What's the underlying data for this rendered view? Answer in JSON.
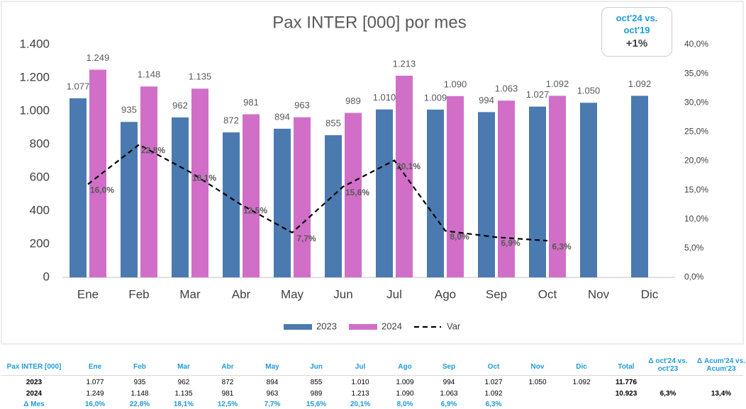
{
  "chart_data": {
    "type": "bar",
    "title": "Pax INTER [000] por mes",
    "categories": [
      "Ene",
      "Feb",
      "Mar",
      "Abr",
      "May",
      "Jun",
      "Jul",
      "Ago",
      "Sep",
      "Oct",
      "Nov",
      "Dic"
    ],
    "series": [
      {
        "name": "2023",
        "color": "#4a7ab0",
        "values": [
          1077,
          935,
          962,
          872,
          894,
          855,
          1010,
          1009,
          994,
          1027,
          1050,
          1092
        ],
        "value_labels": [
          "1.077",
          "935",
          "962",
          "872",
          "894",
          "855",
          "1.010",
          "1.009",
          "994",
          "1.027",
          "1.050",
          "1.092"
        ]
      },
      {
        "name": "2024",
        "color": "#d16fc8",
        "values": [
          1249,
          1148,
          1135,
          981,
          963,
          989,
          1213,
          1090,
          1063,
          1092,
          null,
          null
        ],
        "value_labels": [
          "1.249",
          "1.148",
          "1.135",
          "981",
          "963",
          "989",
          "1.213",
          "1.090",
          "1.063",
          "1.092",
          null,
          null
        ]
      },
      {
        "name": "Var",
        "color": "#000000",
        "axis": "y2",
        "values": [
          16.0,
          22.8,
          18.1,
          12.5,
          7.7,
          15.6,
          20.1,
          8.0,
          6.9,
          6.3,
          null,
          null
        ],
        "value_labels": [
          "16,0%",
          "22,8%",
          "18,1%",
          "12,5%",
          "7,7%",
          "15,6%",
          "20,1%",
          "8,0%",
          "6,9%",
          "6,3%",
          null,
          null
        ]
      }
    ],
    "ylim": [
      0,
      1400
    ],
    "yticks": [
      0,
      200,
      400,
      600,
      800,
      {
        "value": 1000,
        "label": "1.000"
      },
      {
        "value": 1200,
        "label": "1.200"
      },
      {
        "value": 1400,
        "label": "1.400"
      }
    ],
    "y2lim": [
      0,
      40
    ],
    "y2ticks": [
      {
        "value": 0,
        "label": "0,0%"
      },
      {
        "value": 5,
        "label": "5,0%"
      },
      {
        "value": 10,
        "label": "10,0%"
      },
      {
        "value": 15,
        "label": "15,0%"
      },
      {
        "value": 20,
        "label": "20,0%"
      },
      {
        "value": 25,
        "label": "25,0%"
      },
      {
        "value": 30,
        "label": "30,0%"
      },
      {
        "value": 35,
        "label": "35,0%"
      },
      {
        "value": 40,
        "label": "40,0%"
      }
    ],
    "legend": "bottom"
  },
  "callout": {
    "title": "oct'24 vs. oct'19",
    "value": "+1%"
  },
  "table": {
    "header": [
      "Pax INTER [000]",
      "Ene",
      "Feb",
      "Mar",
      "Abr",
      "May",
      "Jun",
      "Jul",
      "Ago",
      "Sep",
      "Oct",
      "Nov",
      "Dic",
      "Total",
      "Δ oct'24 vs. oct'23",
      "Δ Acum'24 vs. Acum'23"
    ],
    "rows": [
      [
        "2023",
        "1.077",
        "935",
        "962",
        "872",
        "894",
        "855",
        "1.010",
        "1.009",
        "994",
        "1.027",
        "1.050",
        "1.092",
        "11.776",
        null,
        null
      ],
      [
        "2024",
        "1.249",
        "1.148",
        "1.135",
        "981",
        "963",
        "989",
        "1.213",
        "1.090",
        "1.063",
        "1.092",
        null,
        null,
        "10.923",
        "6,3%",
        "13,4%"
      ],
      [
        "Δ Mes",
        "16,0%",
        "22,8%",
        "18,1%",
        "12,5%",
        "7,7%",
        "15,6%",
        "20,1%",
        "8,0%",
        "6,9%",
        "6,3%",
        null,
        null,
        null,
        null,
        null
      ]
    ]
  }
}
